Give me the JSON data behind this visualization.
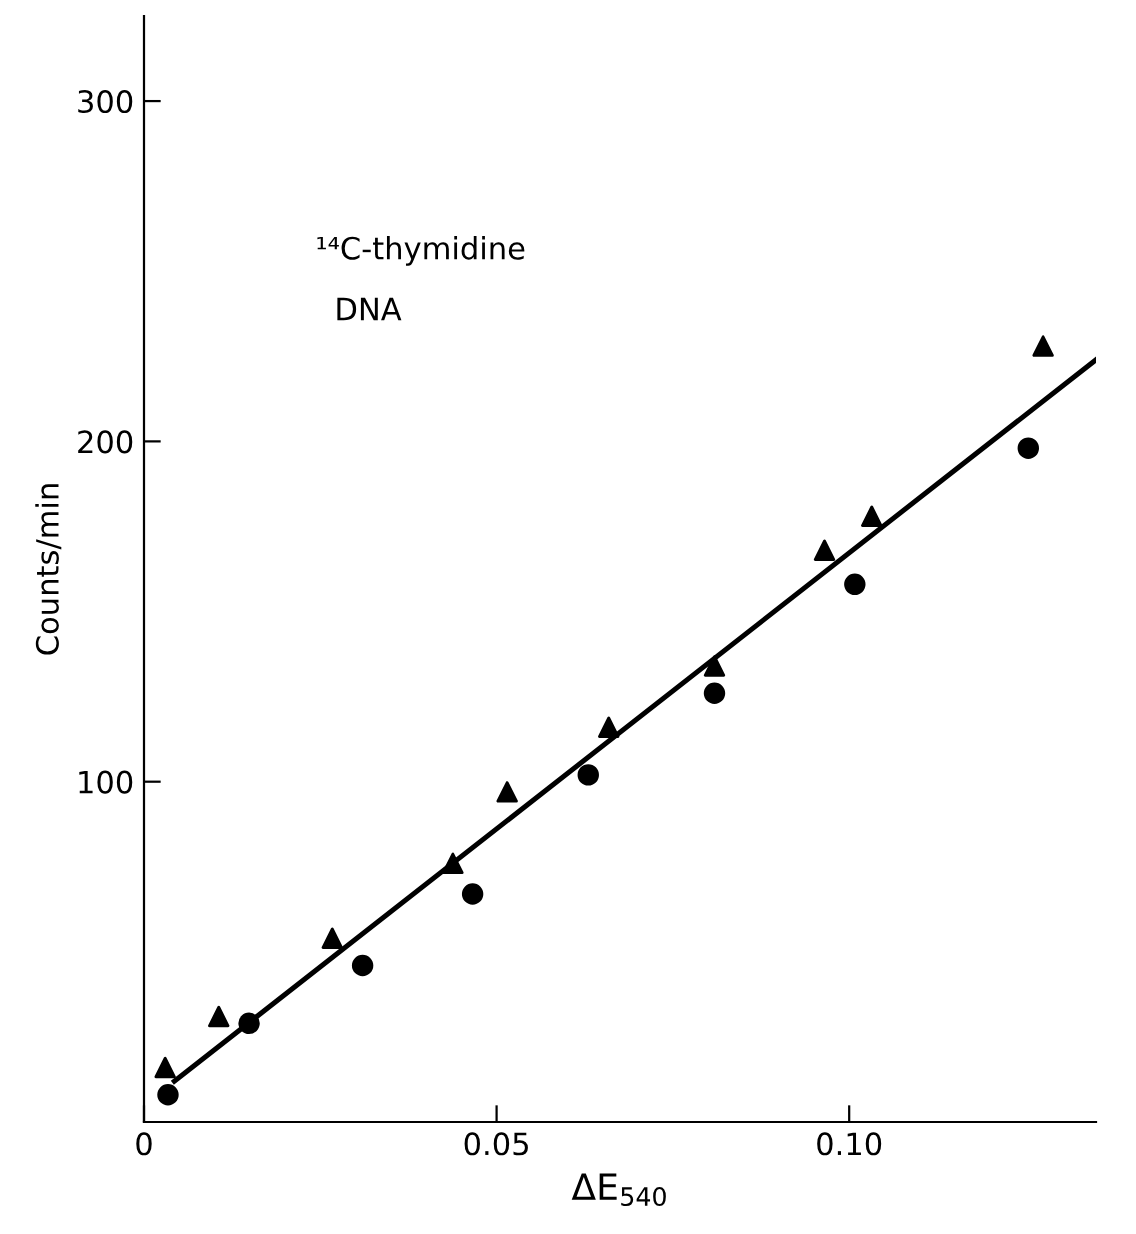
{
  "chart_data": {
    "type": "scatter",
    "xlabel": "ΔE$_{540}$",
    "ylabel": "Counts/min",
    "annotations": [
      "¹⁴C-thymidine",
      "DNA"
    ],
    "xlim": [
      0,
      0.135
    ],
    "xticks": [
      {
        "value": 0,
        "label": "0"
      },
      {
        "value": 0.05,
        "label": "0.05"
      },
      {
        "value": 0.1,
        "label": "0.10"
      }
    ],
    "ylim": [
      0,
      325
    ],
    "yticks": [
      100,
      200,
      300
    ],
    "grid": false,
    "series": [
      {
        "marker": "triangle",
        "color": "#000000",
        "x": [
          0.003,
          0.0106,
          0.0267,
          0.0438,
          0.0515,
          0.0659,
          0.0809,
          0.0965,
          0.1032,
          0.1275
        ],
        "values": [
          16,
          31,
          54,
          76,
          97,
          116,
          134,
          168,
          178,
          228
        ]
      },
      {
        "marker": "circle",
        "color": "#000000",
        "x": [
          0.0034,
          0.0149,
          0.031,
          0.0466,
          0.063,
          0.0809,
          0.1008,
          0.1254
        ],
        "values": [
          8,
          29,
          46,
          67,
          102,
          126,
          158,
          198
        ]
      },
      {
        "type": "line",
        "marker": "none",
        "line_style": "solid",
        "color": "#000000",
        "x": [
          0.0043,
          0.135
        ],
        "values": [
          12,
          224
        ]
      }
    ]
  }
}
